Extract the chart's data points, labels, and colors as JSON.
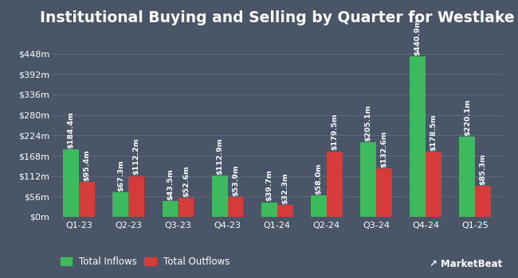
{
  "title": "Institutional Buying and Selling by Quarter for Westlake",
  "quarters": [
    "Q1-23",
    "Q2-23",
    "Q3-23",
    "Q4-23",
    "Q1-24",
    "Q2-24",
    "Q3-24",
    "Q4-24",
    "Q1-25"
  ],
  "inflows": [
    184.4,
    67.3,
    43.5,
    112.9,
    39.7,
    58.0,
    205.1,
    440.9,
    220.1
  ],
  "outflows": [
    95.4,
    112.2,
    52.6,
    53.9,
    32.3,
    179.5,
    132.6,
    178.5,
    85.3
  ],
  "inflow_color": "#3dba5e",
  "outflow_color": "#d63b3b",
  "bg_color": "#4a5568",
  "text_color": "#ffffff",
  "grid_color": "#5a6a7a",
  "bar_width": 0.32,
  "ylim": [
    0,
    504
  ],
  "yticks": [
    0,
    56,
    112,
    168,
    224,
    280,
    336,
    392,
    448
  ],
  "ytick_labels": [
    "$0m",
    "$56m",
    "$112m",
    "$168m",
    "$224m",
    "$280m",
    "$336m",
    "$392m",
    "$448m"
  ],
  "legend_labels": [
    "Total Inflows",
    "Total Outflows"
  ],
  "title_fontsize": 13.5,
  "label_fontsize": 6.8,
  "tick_fontsize": 8.0,
  "legend_fontsize": 8.5
}
